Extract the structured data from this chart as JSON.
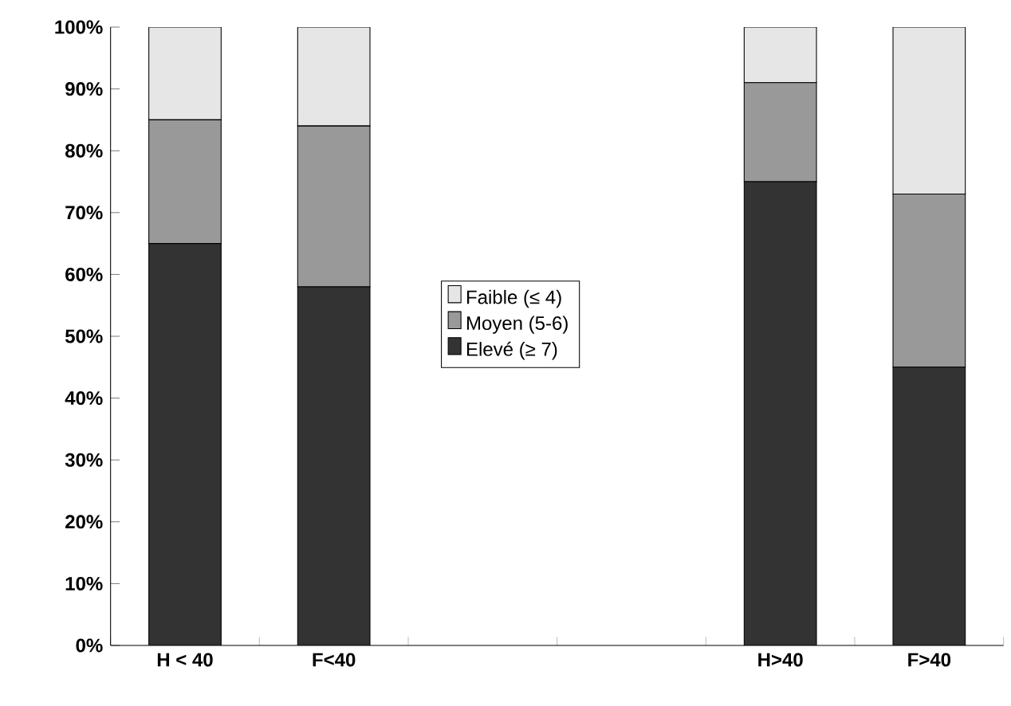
{
  "chart_data": {
    "type": "bar",
    "stacked": true,
    "categories": [
      "H < 40",
      "F<40",
      null,
      null,
      "H>40",
      "F>40"
    ],
    "series": [
      {
        "name": "Elevé  (≥ 7)",
        "color": "#333333",
        "values": [
          65,
          58,
          null,
          null,
          75,
          45
        ]
      },
      {
        "name": "Moyen (5-6)",
        "color": "#999999",
        "values": [
          20,
          26,
          null,
          null,
          16,
          28
        ]
      },
      {
        "name": "Faible  (≤ 4)",
        "color": "#e6e6e6",
        "values": [
          15,
          16,
          null,
          null,
          9,
          27
        ]
      }
    ],
    "ylim": [
      0,
      100
    ],
    "yticks": [
      {
        "value": 0,
        "label": "0%"
      },
      {
        "value": 10,
        "label": "10%"
      },
      {
        "value": 20,
        "label": "20%"
      },
      {
        "value": 30,
        "label": "30%"
      },
      {
        "value": 40,
        "label": "40%"
      },
      {
        "value": 50,
        "label": "50%"
      },
      {
        "value": 60,
        "label": "60%"
      },
      {
        "value": 70,
        "label": "70%"
      },
      {
        "value": 80,
        "label": "80%"
      },
      {
        "value": 90,
        "label": "90%"
      },
      {
        "value": 100,
        "label": "100%"
      }
    ],
    "grid": false,
    "legend": "center"
  }
}
